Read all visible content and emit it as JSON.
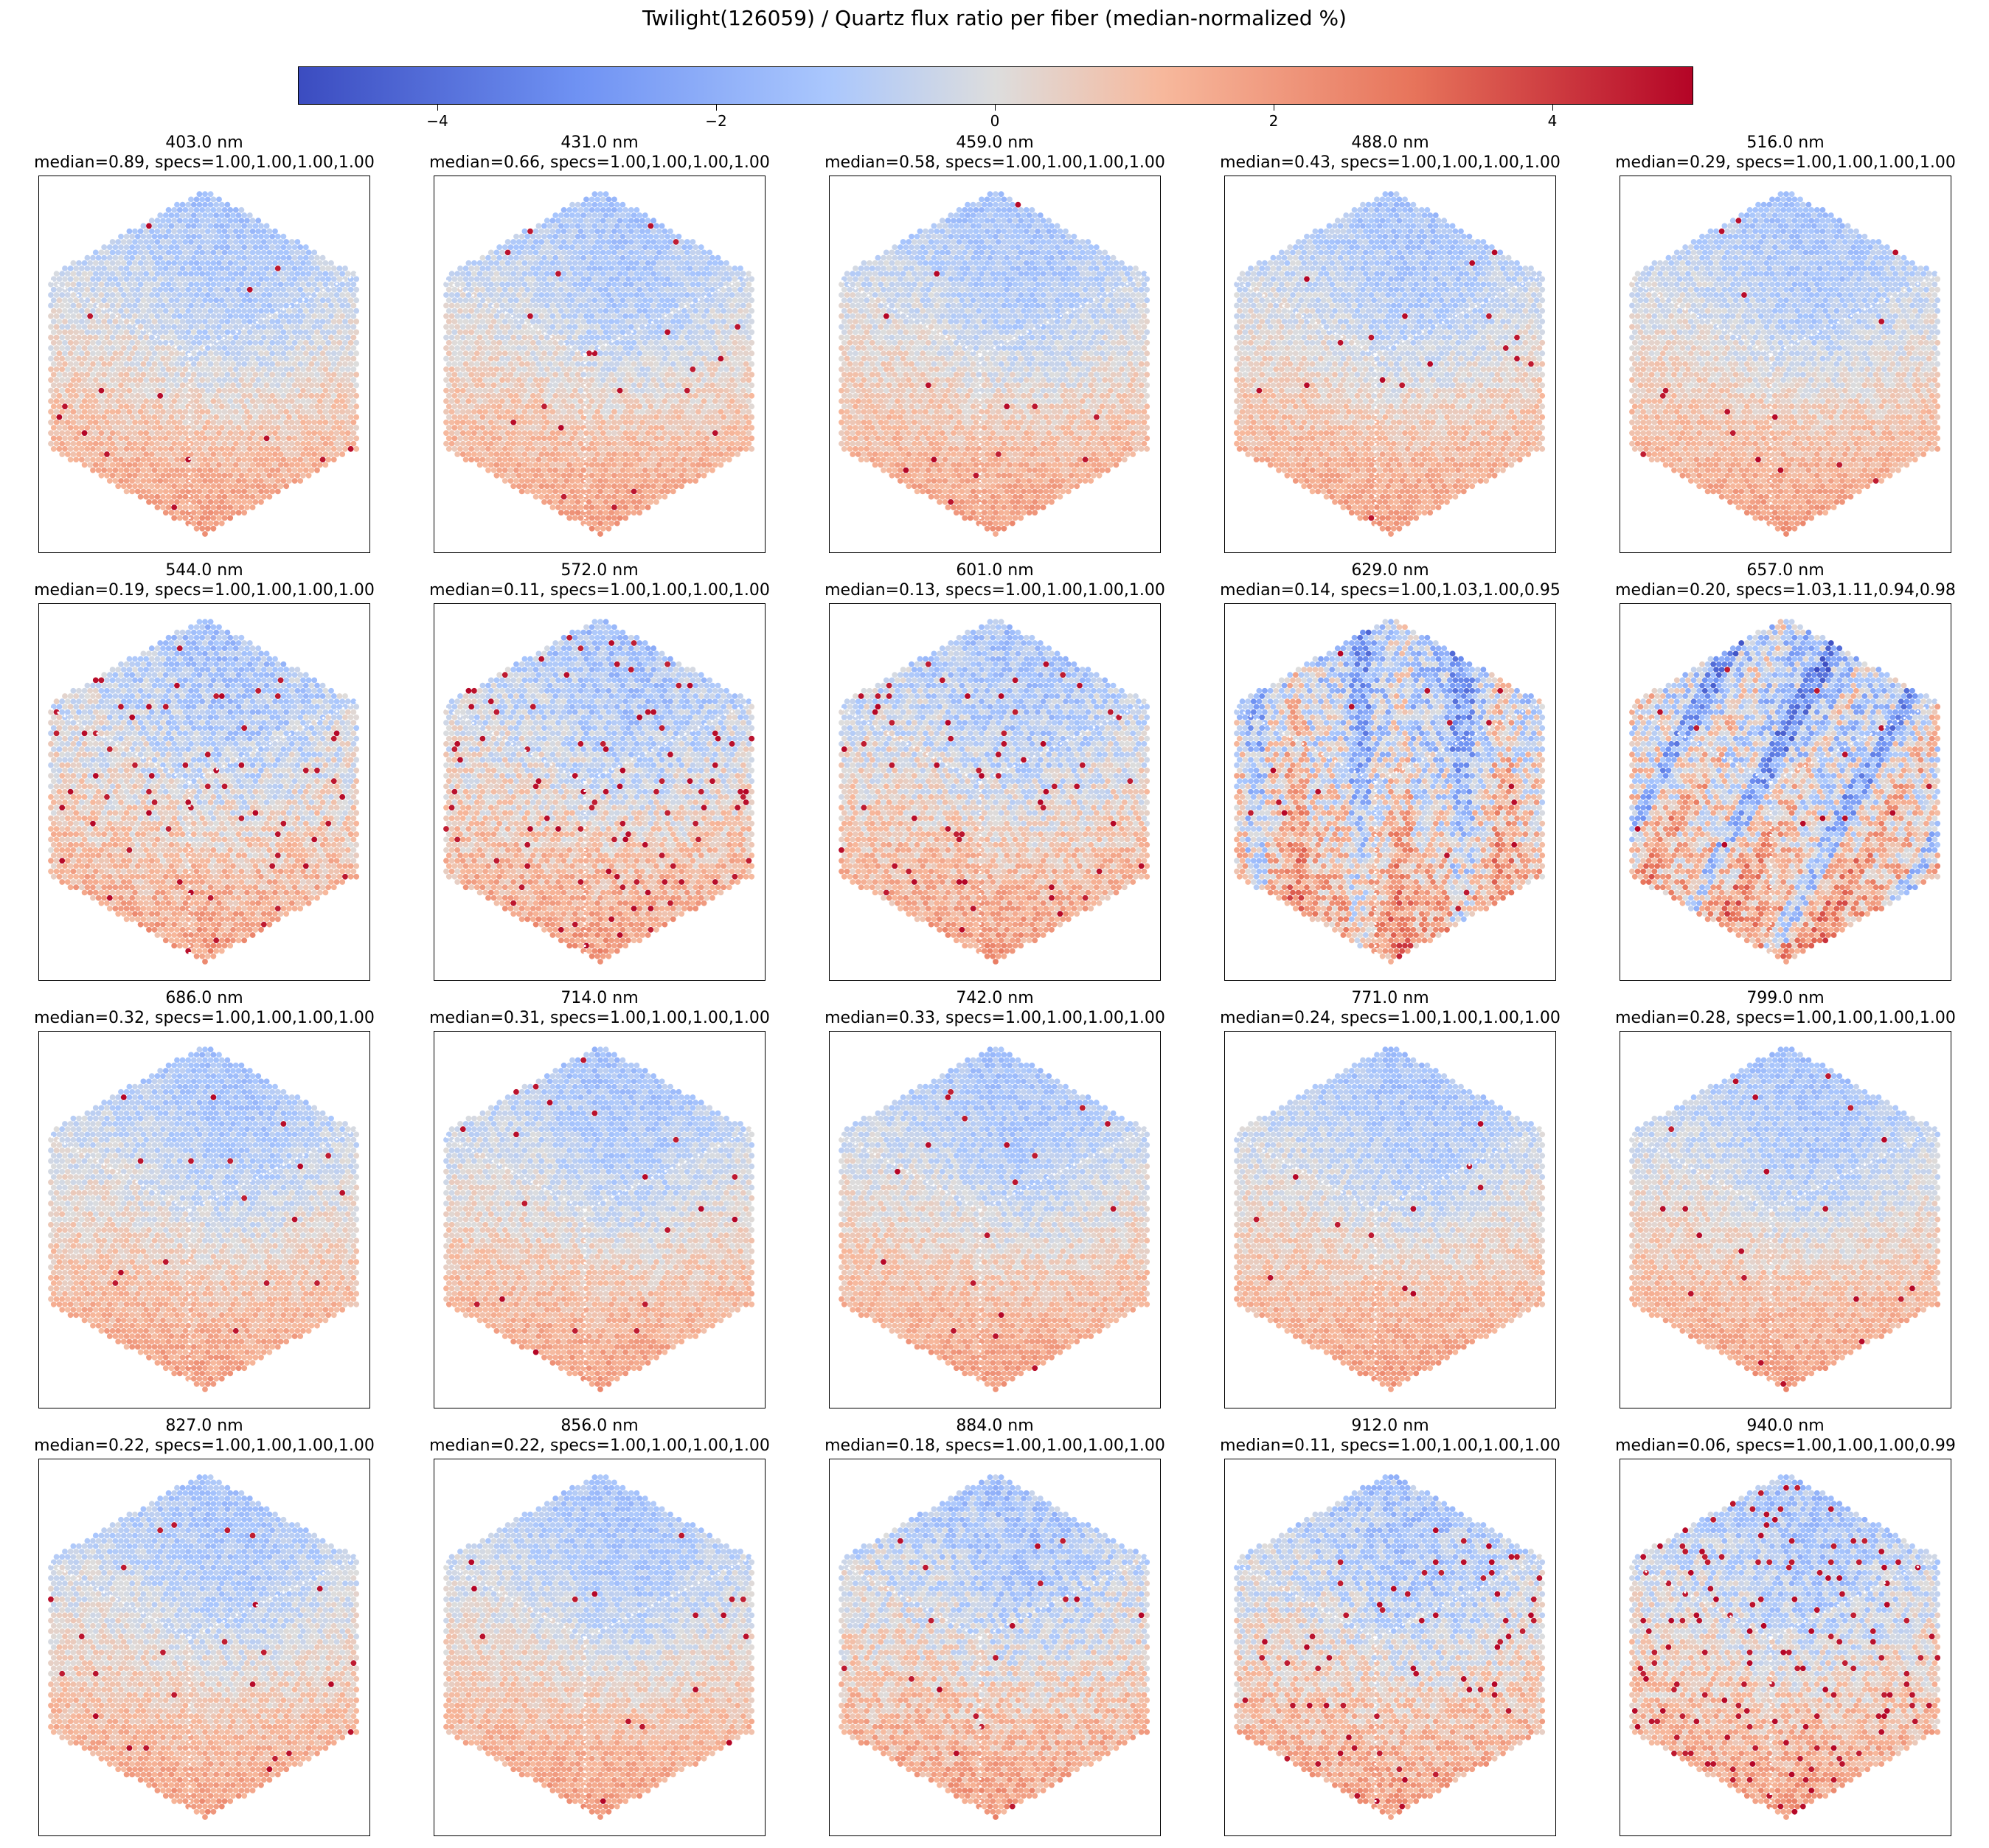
{
  "title": "Twilight(126059) / Quartz flux ratio per fiber (median-normalized %)",
  "chart_data": {
    "type": "heatmap",
    "colormap": "coolwarm",
    "colorbar": {
      "vmin": -5,
      "vmax": 5,
      "ticks": [
        -4,
        -2,
        0,
        2,
        4
      ],
      "tick_labels": [
        "−4",
        "−2",
        "0",
        "2",
        "4"
      ]
    },
    "panels": [
      {
        "wavelength": "403.0 nm",
        "stats": "median=0.89, specs=1.00,1.00,1.00,1.00"
      },
      {
        "wavelength": "431.0 nm",
        "stats": "median=0.66, specs=1.00,1.00,1.00,1.00"
      },
      {
        "wavelength": "459.0 nm",
        "stats": "median=0.58, specs=1.00,1.00,1.00,1.00"
      },
      {
        "wavelength": "488.0 nm",
        "stats": "median=0.43, specs=1.00,1.00,1.00,1.00"
      },
      {
        "wavelength": "516.0 nm",
        "stats": "median=0.29, specs=1.00,1.00,1.00,1.00"
      },
      {
        "wavelength": "544.0 nm",
        "stats": "median=0.19, specs=1.00,1.00,1.00,1.00"
      },
      {
        "wavelength": "572.0 nm",
        "stats": "median=0.11, specs=1.00,1.00,1.00,1.00"
      },
      {
        "wavelength": "601.0 nm",
        "stats": "median=0.13, specs=1.00,1.00,1.00,1.00"
      },
      {
        "wavelength": "629.0 nm",
        "stats": "median=0.14, specs=1.00,1.03,1.00,0.95"
      },
      {
        "wavelength": "657.0 nm",
        "stats": "median=0.20, specs=1.03,1.11,0.94,0.98"
      },
      {
        "wavelength": "686.0 nm",
        "stats": "median=0.32, specs=1.00,1.00,1.00,1.00"
      },
      {
        "wavelength": "714.0 nm",
        "stats": "median=0.31, specs=1.00,1.00,1.00,1.00"
      },
      {
        "wavelength": "742.0 nm",
        "stats": "median=0.33, specs=1.00,1.00,1.00,1.00"
      },
      {
        "wavelength": "771.0 nm",
        "stats": "median=0.24, specs=1.00,1.00,1.00,1.00"
      },
      {
        "wavelength": "799.0 nm",
        "stats": "median=0.28, specs=1.00,1.00,1.00,1.00"
      },
      {
        "wavelength": "827.0 nm",
        "stats": "median=0.22, specs=1.00,1.00,1.00,1.00"
      },
      {
        "wavelength": "856.0 nm",
        "stats": "median=0.22, specs=1.00,1.00,1.00,1.00"
      },
      {
        "wavelength": "884.0 nm",
        "stats": "median=0.18, specs=1.00,1.00,1.00,1.00"
      },
      {
        "wavelength": "912.0 nm",
        "stats": "median=0.11, specs=1.00,1.00,1.00,1.00"
      },
      {
        "wavelength": "940.0 nm",
        "stats": "median=0.06, specs=1.00,1.00,1.00,0.99"
      }
    ]
  }
}
